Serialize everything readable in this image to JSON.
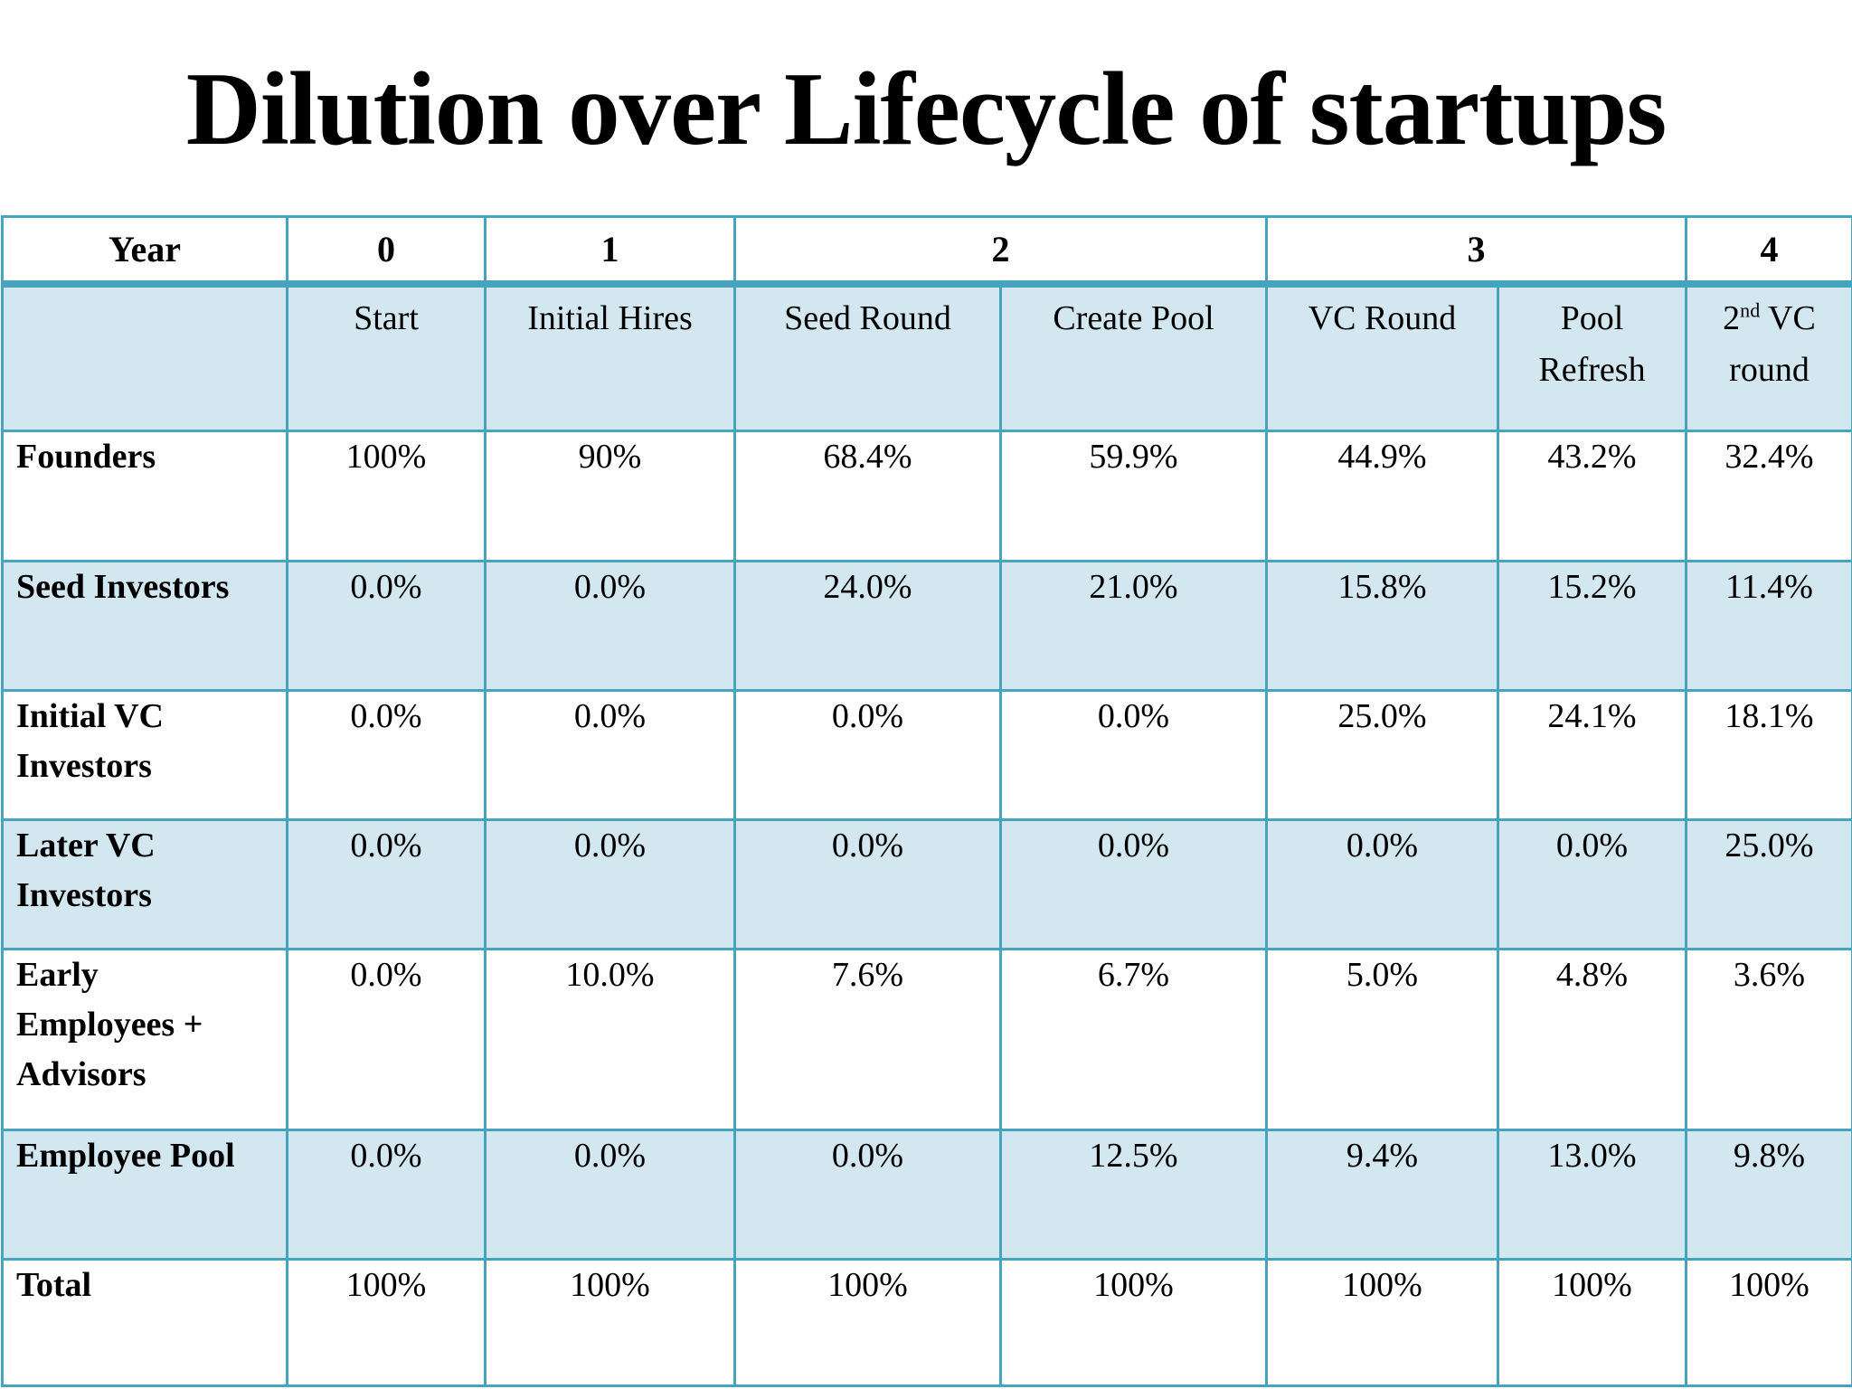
{
  "page": {
    "title": "Dilution over Lifecycle of startups"
  },
  "colors": {
    "border_teal": "#46a4bf",
    "band_blue": "#d3e7f0",
    "background_white": "#ffffff",
    "text_black": "#000000"
  },
  "table": {
    "year_header": {
      "row_label": "Year",
      "year_cells": [
        {
          "text": "0",
          "colspan": 1
        },
        {
          "text": "1",
          "colspan": 1
        },
        {
          "text": "2",
          "colspan": 2
        },
        {
          "text": "3",
          "colspan": 2
        },
        {
          "text": "4",
          "colspan": 1
        }
      ]
    },
    "stage_header": {
      "corner_label": "",
      "stages": [
        "Start",
        "Initial Hires",
        "Seed Round",
        "Create Pool",
        "VC Round",
        "Pool\nRefresh",
        "2^{nd} VC\nround"
      ]
    },
    "rows": [
      {
        "label_lines": [
          "Founders"
        ],
        "values": [
          "100%",
          "90%",
          "68.4%",
          "59.9%",
          "44.9%",
          "43.2%",
          "32.4%"
        ]
      },
      {
        "label_lines": [
          "Seed Investors"
        ],
        "values": [
          "0.0%",
          "0.0%",
          "24.0%",
          "21.0%",
          "15.8%",
          "15.2%",
          "11.4%"
        ]
      },
      {
        "label_lines": [
          "Initial VC",
          "Investors"
        ],
        "values": [
          "0.0%",
          "0.0%",
          "0.0%",
          "0.0%",
          "25.0%",
          "24.1%",
          "18.1%"
        ]
      },
      {
        "label_lines": [
          "Later VC",
          "Investors"
        ],
        "values": [
          "0.0%",
          "0.0%",
          "0.0%",
          "0.0%",
          "0.0%",
          "0.0%",
          "25.0%"
        ]
      },
      {
        "label_lines": [
          "Early",
          "Employees +",
          "Advisors"
        ],
        "values": [
          "0.0%",
          "10.0%",
          "7.6%",
          "6.7%",
          "5.0%",
          "4.8%",
          "3.6%"
        ]
      },
      {
        "label_lines": [
          "Employee Pool"
        ],
        "values": [
          "0.0%",
          "0.0%",
          "0.0%",
          "12.5%",
          "9.4%",
          "13.0%",
          "9.8%"
        ]
      },
      {
        "label_lines": [
          "Total"
        ],
        "values": [
          "100%",
          "100%",
          "100%",
          "100%",
          "100%",
          "100%",
          "100%"
        ]
      }
    ]
  }
}
